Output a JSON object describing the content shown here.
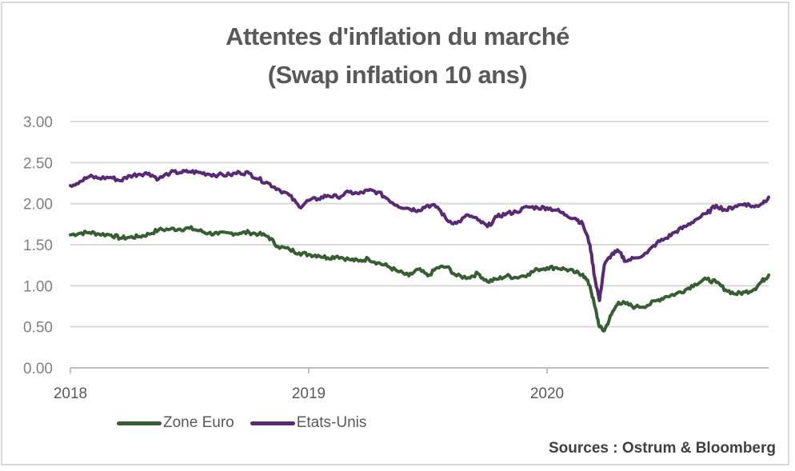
{
  "chart_data": {
    "type": "line",
    "title": "Attentes d'inflation du marché",
    "subtitle": "(Swap inflation 10 ans)",
    "xlabel": "",
    "ylabel": "",
    "ylim": [
      0,
      3
    ],
    "xlim": [
      2018,
      2020.93
    ],
    "grid": true,
    "legend_position": "bottom-left",
    "y_ticks": [
      "0.00",
      "0.50",
      "1.00",
      "1.50",
      "2.00",
      "2.50",
      "3.00"
    ],
    "y_tick_values": [
      0,
      0.5,
      1,
      1.5,
      2,
      2.5,
      3
    ],
    "x_ticks": [
      "2018",
      "2019",
      "2020"
    ],
    "x_tick_values": [
      2018,
      2019,
      2020
    ],
    "x": [
      2018.0,
      2018.04,
      2018.08,
      2018.12,
      2018.17,
      2018.21,
      2018.25,
      2018.29,
      2018.33,
      2018.37,
      2018.42,
      2018.46,
      2018.5,
      2018.54,
      2018.58,
      2018.62,
      2018.67,
      2018.71,
      2018.75,
      2018.79,
      2018.83,
      2018.87,
      2018.92,
      2018.96,
      2019.0,
      2019.04,
      2019.08,
      2019.12,
      2019.17,
      2019.21,
      2019.25,
      2019.29,
      2019.33,
      2019.37,
      2019.42,
      2019.46,
      2019.5,
      2019.54,
      2019.58,
      2019.62,
      2019.67,
      2019.71,
      2019.75,
      2019.79,
      2019.83,
      2019.87,
      2019.92,
      2019.96,
      2020.0,
      2020.04,
      2020.08,
      2020.12,
      2020.15,
      2020.18,
      2020.2,
      2020.22,
      2020.24,
      2020.27,
      2020.3,
      2020.33,
      2020.37,
      2020.42,
      2020.46,
      2020.5,
      2020.54,
      2020.58,
      2020.62,
      2020.67,
      2020.71,
      2020.75,
      2020.79,
      2020.83,
      2020.87,
      2020.9,
      2020.93
    ],
    "series": [
      {
        "name": "Zone Euro",
        "color": "#375d32",
        "values": [
          1.62,
          1.64,
          1.65,
          1.63,
          1.62,
          1.58,
          1.59,
          1.6,
          1.63,
          1.68,
          1.69,
          1.69,
          1.7,
          1.67,
          1.64,
          1.63,
          1.64,
          1.64,
          1.65,
          1.63,
          1.6,
          1.48,
          1.44,
          1.4,
          1.38,
          1.37,
          1.34,
          1.36,
          1.32,
          1.3,
          1.33,
          1.28,
          1.24,
          1.18,
          1.12,
          1.2,
          1.12,
          1.22,
          1.23,
          1.12,
          1.1,
          1.15,
          1.05,
          1.08,
          1.12,
          1.1,
          1.14,
          1.2,
          1.22,
          1.22,
          1.2,
          1.16,
          1.14,
          1.0,
          0.75,
          0.5,
          0.45,
          0.65,
          0.8,
          0.78,
          0.74,
          0.76,
          0.82,
          0.87,
          0.9,
          0.95,
          1.02,
          1.08,
          1.04,
          0.95,
          0.9,
          0.92,
          0.96,
          1.05,
          1.13
        ]
      },
      {
        "name": "Etats-Unis",
        "color": "#572a73",
        "values": [
          2.22,
          2.27,
          2.33,
          2.31,
          2.32,
          2.28,
          2.34,
          2.36,
          2.37,
          2.3,
          2.38,
          2.38,
          2.39,
          2.38,
          2.36,
          2.35,
          2.35,
          2.38,
          2.37,
          2.3,
          2.25,
          2.18,
          2.1,
          1.96,
          2.04,
          2.06,
          2.1,
          2.08,
          2.14,
          2.12,
          2.16,
          2.14,
          2.06,
          1.98,
          1.94,
          1.92,
          1.98,
          1.96,
          1.8,
          1.76,
          1.86,
          1.8,
          1.72,
          1.84,
          1.88,
          1.9,
          1.96,
          1.95,
          1.95,
          1.92,
          1.86,
          1.82,
          1.75,
          1.5,
          1.1,
          0.82,
          1.25,
          1.38,
          1.42,
          1.3,
          1.34,
          1.4,
          1.52,
          1.58,
          1.66,
          1.72,
          1.8,
          1.88,
          1.98,
          1.92,
          1.97,
          2.0,
          1.96,
          2.0,
          2.08
        ]
      }
    ]
  },
  "sources": "Sources : Ostrum & Bloomberg"
}
